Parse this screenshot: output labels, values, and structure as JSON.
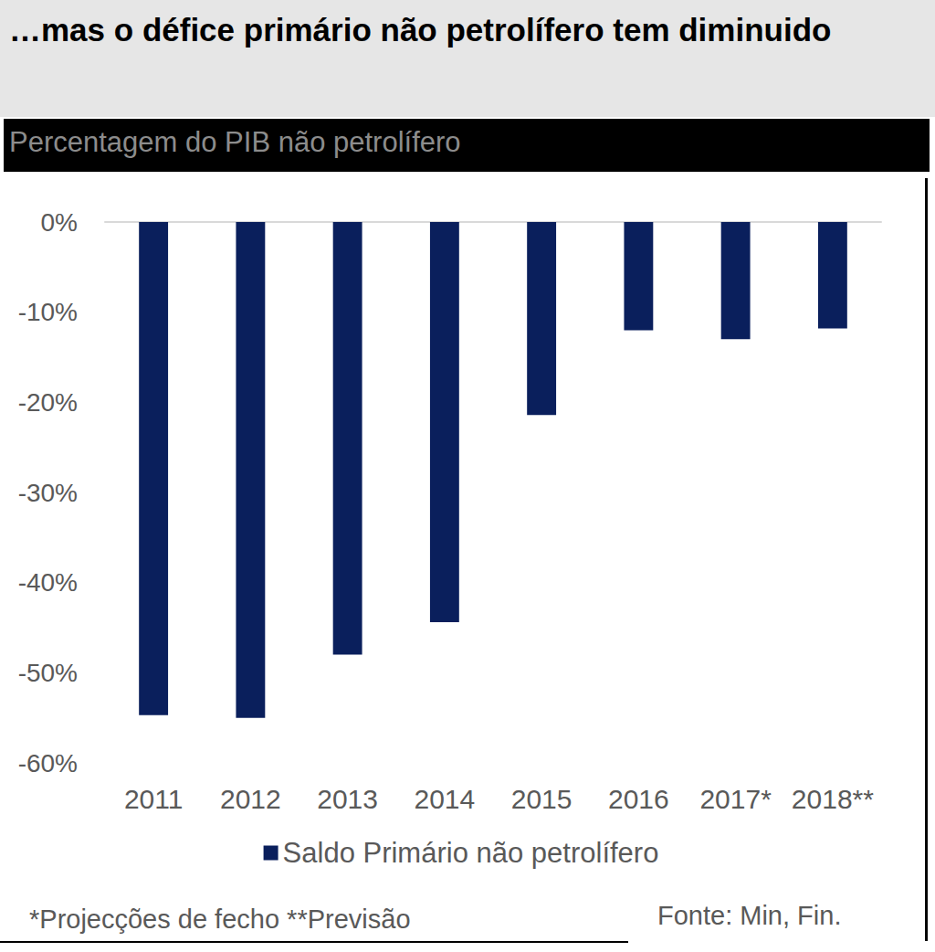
{
  "chart_data": {
    "type": "bar",
    "title": "…mas o défice primário não petrolífero tem diminuido",
    "subtitle": "Percentagem do PIB não petrolífero",
    "categories": [
      "2011",
      "2012",
      "2013",
      "2014",
      "2015",
      "2016",
      "2017*",
      "2018**"
    ],
    "series": [
      {
        "name": "Saldo Primário não petrolífero",
        "color": "#0a1f5c",
        "values": [
          -54.7,
          -55.0,
          -48.0,
          -44.4,
          -21.4,
          -12.0,
          -13.0,
          -11.8
        ]
      }
    ],
    "ylim": [
      -60,
      0
    ],
    "yticks": [
      {
        "value": -60,
        "label": "-60%"
      },
      {
        "value": -50,
        "label": "-50%"
      },
      {
        "value": -40,
        "label": "-40%"
      },
      {
        "value": -30,
        "label": "-30%"
      },
      {
        "value": -20,
        "label": "-20%"
      },
      {
        "value": -10,
        "label": "-10%"
      },
      {
        "value": 0,
        "label": "0%"
      }
    ],
    "grid": false,
    "legend": "bottom",
    "annotations": [
      "*Projecções de fecho **Previsão",
      "Fonte: Min, Fin."
    ]
  }
}
